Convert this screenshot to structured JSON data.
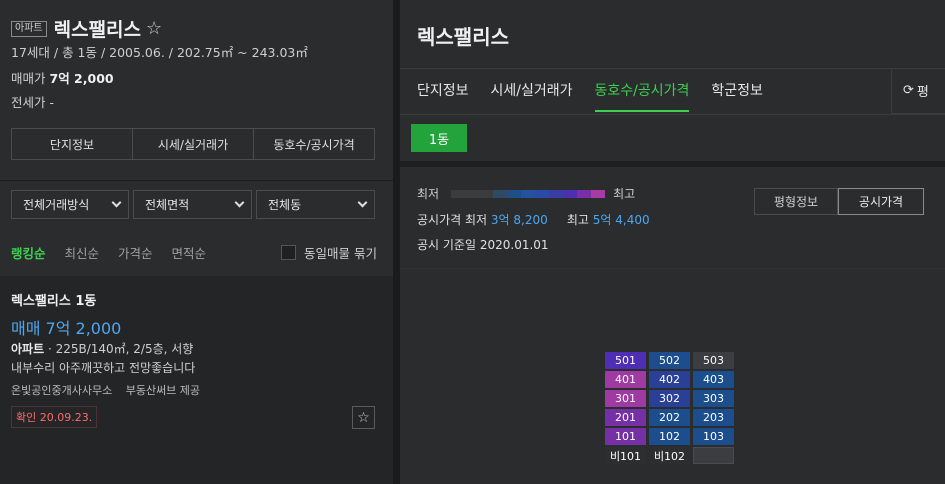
{
  "left": {
    "type_badge": "아파트",
    "complex_name": "렉스팰리스",
    "meta": "17세대 / 총 1동 / 2005.06. / 202.75㎡ ~ 243.03㎡",
    "sale_label": "매매가",
    "sale_value": "7억 2,000",
    "rent_label": "전세가",
    "rent_value": "-",
    "tabs": [
      "단지정보",
      "시세/실거래가",
      "동호수/공시가격"
    ],
    "filters": [
      "전체거래방식",
      "전체면적",
      "전체동"
    ],
    "sorts": [
      "랭킹순",
      "최신순",
      "가격순",
      "면적순"
    ],
    "group_label": "동일매물 묶기",
    "listing": {
      "title": "렉스팰리스 1동",
      "price": "매매 7억 2,000",
      "type": "아파트",
      "spec": " · 225B/140㎡, 2/5층, 서향",
      "desc": "내부수리 아주깨끗하고 전망좋습니다",
      "agent": "온빛공인중개사사무소",
      "provider": "부동산써브 제공",
      "confirm": "확인 20.09.23."
    }
  },
  "right": {
    "title": "렉스팰리스",
    "tabs": [
      "단지정보",
      "시세/실거래가",
      "동호수/공시가격",
      "학군정보"
    ],
    "refresh_label": "평",
    "dong": "1동",
    "legend_low": "최저",
    "legend_high": "최고",
    "legend_colors": [
      "#3a3c3e",
      "#3a3c3e",
      "#3a3c3e",
      "#2f4a66",
      "#1f4f86",
      "#2452a0",
      "#2a4aa6",
      "#3b3ca6",
      "#4d2fb0",
      "#7a2ea8",
      "#a63ba6"
    ],
    "price_label": "공시가격",
    "min_label": "최저",
    "min_value": "3억 8,200",
    "max_label": "최고",
    "max_value": "5억 4,400",
    "date_label": "공시 기준일",
    "date_value": "2020.01.01",
    "view_buttons": [
      "평형정보",
      "공시가격"
    ],
    "units": [
      [
        {
          "label": "501",
          "color": "#4f2db4"
        },
        {
          "label": "502",
          "color": "#1c4d8c"
        },
        {
          "label": "503",
          "color": "#3b3d40"
        }
      ],
      [
        {
          "label": "401",
          "color": "#a03aa3"
        },
        {
          "label": "402",
          "color": "#2a3f96"
        },
        {
          "label": "403",
          "color": "#1c4d8c"
        }
      ],
      [
        {
          "label": "301",
          "color": "#a03aa3"
        },
        {
          "label": "302",
          "color": "#2a3f96"
        },
        {
          "label": "303",
          "color": "#1c4d8c"
        }
      ],
      [
        {
          "label": "201",
          "color": "#7530a6"
        },
        {
          "label": "202",
          "color": "#1c4d8c"
        },
        {
          "label": "203",
          "color": "#1c4d8c"
        }
      ],
      [
        {
          "label": "101",
          "color": "#7530a6"
        },
        {
          "label": "102",
          "color": "#1c4d8c"
        },
        {
          "label": "103",
          "color": "#1c4d8c"
        }
      ],
      [
        {
          "label": "비101",
          "color": "#2c2e30"
        },
        {
          "label": "비102",
          "color": "#2c2e30"
        },
        {
          "label": "",
          "color": "#3b3d40"
        }
      ]
    ]
  }
}
